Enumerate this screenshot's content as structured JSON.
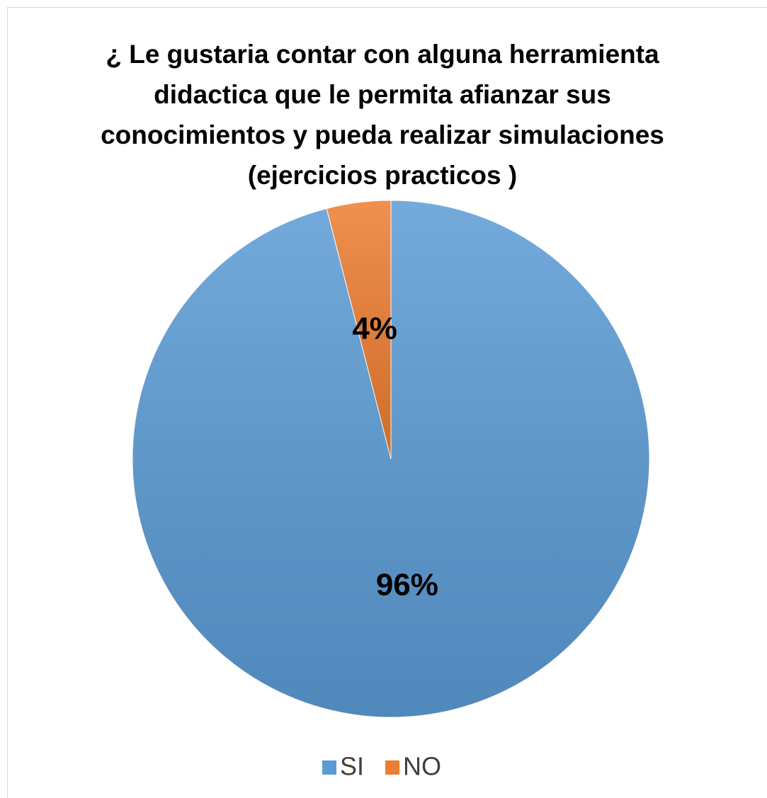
{
  "chart_data": {
    "type": "pie",
    "title": "¿ Le gustaria contar con alguna herramienta didactica que le permita afianzar sus conocimientos y pueda realizar simulaciones (ejercicios practicos )",
    "categories": [
      "SI",
      "NO"
    ],
    "values": [
      96,
      4
    ],
    "value_labels": [
      "96%",
      "4%"
    ],
    "colors": [
      "#5b9bd5",
      "#ed7d31"
    ],
    "legend": "bottom"
  }
}
